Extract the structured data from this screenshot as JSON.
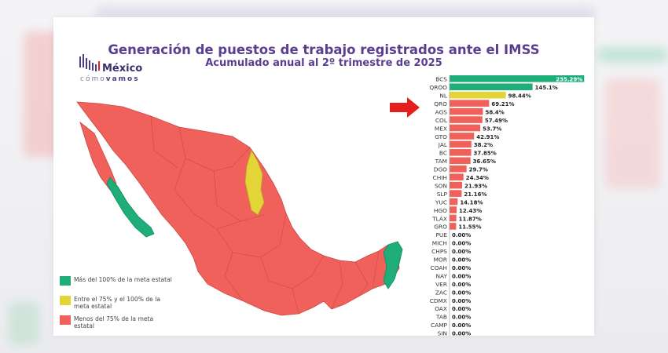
{
  "header": {
    "title": "Generación de puestos de trabajo registrados ante el IMSS",
    "subtitle": "Acumulado anual al 2º trimestre de 2025"
  },
  "logo": {
    "word": "México",
    "tag_a": "cómo",
    "tag_b": "vamos"
  },
  "colors": {
    "green": "#1fae7a",
    "yellow": "#e3d537",
    "red": "#f0615c",
    "arrow": "#e4201f",
    "purple": "#5a3e8f"
  },
  "legend": [
    {
      "label": "Más del 100% de la meta estatal",
      "color": "#1fae7a"
    },
    {
      "label": "Entre el 75% y el 100% de la meta estatal",
      "color": "#e3d537"
    },
    {
      "label": "Menos del 75% de la meta estatal",
      "color": "#f0615c"
    }
  ],
  "chart_data": {
    "type": "bar",
    "orientation": "horizontal",
    "categories": [
      "BCS",
      "QROO",
      "NL",
      "QRO",
      "AGS",
      "COL",
      "MEX",
      "GTO",
      "JAL",
      "BC",
      "TAM",
      "DGO",
      "CHIH",
      "SON",
      "SLP",
      "YUC",
      "HGO",
      "TLAX",
      "GRO",
      "PUE",
      "MICH",
      "CHPS",
      "MOR",
      "COAH",
      "NAY",
      "VER",
      "ZAC",
      "CDMX",
      "OAX",
      "TAB",
      "CAMP",
      "SIN"
    ],
    "values": [
      235.29,
      145.1,
      98.44,
      69.21,
      58.4,
      57.49,
      53.7,
      42.91,
      38.2,
      37.85,
      36.65,
      29.7,
      24.34,
      21.93,
      21.16,
      14.18,
      12.43,
      11.87,
      11.55,
      0,
      0,
      0,
      0,
      0,
      0,
      0,
      0,
      0,
      0,
      0,
      0,
      0
    ],
    "value_labels": [
      "235.29%",
      "145.1%",
      "98.44%",
      "69.21%",
      "58.4%",
      "57.49%",
      "53.7%",
      "42.91%",
      "38.2%",
      "37.85%",
      "36.65%",
      "29.7%",
      "24.34%",
      "21.93%",
      "21.16%",
      "14.18%",
      "12.43%",
      "11.87%",
      "11.55%",
      "0.00%",
      "0.00%",
      "0.00%",
      "0.00%",
      "0.00%",
      "0.00%",
      "0.00%",
      "0.00%",
      "0.00%",
      "0.00%",
      "0.00%",
      "0.00%",
      "0.00%"
    ],
    "xlim": [
      0,
      250
    ],
    "xticks": [
      "0%",
      "50%",
      "100%",
      "150%",
      "200%",
      "25"
    ],
    "grid": false
  }
}
